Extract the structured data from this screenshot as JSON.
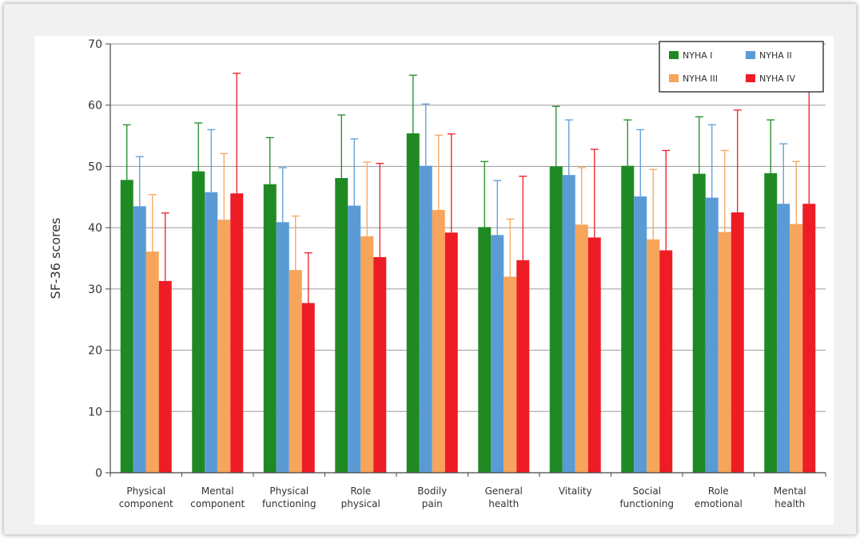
{
  "chart_data": {
    "type": "bar",
    "ylabel": "SF-36 scores",
    "xlabel": "",
    "ylim": [
      0,
      70
    ],
    "yticks": [
      0,
      10,
      20,
      30,
      40,
      50,
      60,
      70
    ],
    "grid": true,
    "legend_position": "top-right",
    "categories": [
      [
        "Physical",
        "component"
      ],
      [
        "Mental",
        "component"
      ],
      [
        "Physical",
        "functioning"
      ],
      [
        "Role",
        "physical"
      ],
      [
        "Bodily",
        "pain"
      ],
      [
        "General",
        "health"
      ],
      [
        "Vitality"
      ],
      [
        "Social",
        "functioning"
      ],
      [
        "Role",
        "emotional"
      ],
      [
        "Mental",
        "health"
      ]
    ],
    "series": [
      {
        "name": "NYHA I",
        "color": "#1f8a24",
        "values": [
          47.8,
          49.2,
          47.1,
          48.1,
          55.4,
          40.1,
          50.0,
          50.1,
          48.8,
          48.9
        ],
        "error_upper": [
          56.8,
          57.1,
          54.7,
          58.4,
          64.9,
          50.8,
          59.8,
          57.6,
          58.1,
          57.6
        ]
      },
      {
        "name": "NYHA II",
        "color": "#5b9bd5",
        "values": [
          43.5,
          45.8,
          40.9,
          43.6,
          50.1,
          38.8,
          48.6,
          45.1,
          44.9,
          43.9
        ],
        "error_upper": [
          51.6,
          56.0,
          49.8,
          54.5,
          60.2,
          47.7,
          57.6,
          56.0,
          56.8,
          53.7
        ]
      },
      {
        "name": "NYHA III",
        "color": "#f6a55b",
        "values": [
          36.1,
          41.3,
          33.1,
          38.6,
          42.9,
          32.0,
          40.5,
          38.1,
          39.3,
          40.6
        ],
        "error_upper": [
          45.4,
          52.1,
          41.9,
          50.7,
          55.1,
          41.4,
          49.8,
          49.5,
          52.6,
          50.8
        ]
      },
      {
        "name": "NYHA IV",
        "color": "#ee1c25",
        "values": [
          31.3,
          45.6,
          27.7,
          35.2,
          39.2,
          34.7,
          38.4,
          36.3,
          42.5,
          43.9
        ],
        "error_upper": [
          42.4,
          65.2,
          35.9,
          50.5,
          55.3,
          48.4,
          52.8,
          52.6,
          59.2,
          62.7
        ]
      }
    ]
  }
}
